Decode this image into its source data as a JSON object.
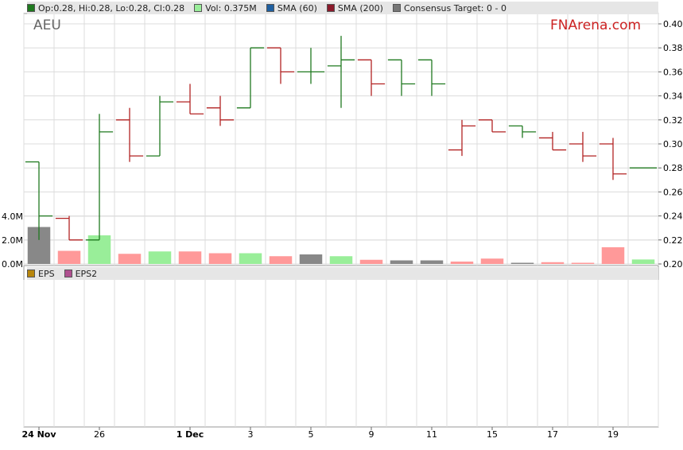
{
  "ticker": "AEU",
  "brand": "FNArena.com",
  "legend": [
    {
      "label": "Op:0.28, Hi:0.28, Lo:0.28, Cl:0.28",
      "color": "#1f7a1f"
    },
    {
      "label": "Vol: 0.375M",
      "color": "#99ee99"
    },
    {
      "label": "SMA (60)",
      "color": "#1f5fa0"
    },
    {
      "label": "SMA (200)",
      "color": "#8b1a2b"
    },
    {
      "label": "Consensus Target: 0 - 0",
      "color": "#777777"
    }
  ],
  "legend2": [
    {
      "label": "EPS",
      "color": "#b8860b"
    },
    {
      "label": "EPS2",
      "color": "#b05090"
    }
  ],
  "colors": {
    "up": "#1f7a1f",
    "down": "#b22222",
    "vol_up": "#99ee99",
    "vol_down": "#ff9999",
    "vol_neutral": "#888888"
  },
  "chart_data": {
    "type": "ohlc",
    "price_ylim": [
      0.2,
      0.4
    ],
    "price_ticks": [
      "0.20",
      "0.22",
      "0.24",
      "0.26",
      "0.28",
      "0.30",
      "0.32",
      "0.34",
      "0.36",
      "0.38",
      "0.40"
    ],
    "volume_ticks": [
      "0.0M",
      "2.0M",
      "4.0M"
    ],
    "volume_ylim": [
      0,
      4000000
    ],
    "x_labels": [
      {
        "index": 0,
        "text": "24 Nov",
        "bold": true
      },
      {
        "index": 2,
        "text": "26",
        "bold": false
      },
      {
        "index": 5,
        "text": "1 Dec",
        "bold": true
      },
      {
        "index": 7,
        "text": "3",
        "bold": false
      },
      {
        "index": 9,
        "text": "5",
        "bold": false
      },
      {
        "index": 11,
        "text": "9",
        "bold": false
      },
      {
        "index": 13,
        "text": "11",
        "bold": false
      },
      {
        "index": 15,
        "text": "15",
        "bold": false
      },
      {
        "index": 17,
        "text": "17",
        "bold": false
      },
      {
        "index": 19,
        "text": "19",
        "bold": false
      }
    ],
    "bars": [
      {
        "o": 0.285,
        "h": 0.285,
        "l": 0.22,
        "c": 0.24,
        "dir": "up",
        "vol": 3100000,
        "vc": "neutral"
      },
      {
        "o": 0.238,
        "h": 0.24,
        "l": 0.22,
        "c": 0.22,
        "dir": "down",
        "vol": 1100000,
        "vc": "down"
      },
      {
        "o": 0.22,
        "h": 0.325,
        "l": 0.22,
        "c": 0.31,
        "dir": "up",
        "vol": 2400000,
        "vc": "up"
      },
      {
        "o": 0.32,
        "h": 0.33,
        "l": 0.285,
        "c": 0.29,
        "dir": "down",
        "vol": 850000,
        "vc": "down"
      },
      {
        "o": 0.29,
        "h": 0.34,
        "l": 0.29,
        "c": 0.335,
        "dir": "up",
        "vol": 1050000,
        "vc": "up"
      },
      {
        "o": 0.335,
        "h": 0.35,
        "l": 0.325,
        "c": 0.325,
        "dir": "down",
        "vol": 1050000,
        "vc": "down"
      },
      {
        "o": 0.33,
        "h": 0.34,
        "l": 0.315,
        "c": 0.32,
        "dir": "down",
        "vol": 900000,
        "vc": "down"
      },
      {
        "o": 0.33,
        "h": 0.38,
        "l": 0.33,
        "c": 0.38,
        "dir": "up",
        "vol": 900000,
        "vc": "up"
      },
      {
        "o": 0.38,
        "h": 0.38,
        "l": 0.35,
        "c": 0.36,
        "dir": "down",
        "vol": 650000,
        "vc": "down"
      },
      {
        "o": 0.36,
        "h": 0.38,
        "l": 0.35,
        "c": 0.36,
        "dir": "up",
        "vol": 800000,
        "vc": "neutral"
      },
      {
        "o": 0.365,
        "h": 0.39,
        "l": 0.33,
        "c": 0.37,
        "dir": "up",
        "vol": 650000,
        "vc": "up"
      },
      {
        "o": 0.37,
        "h": 0.37,
        "l": 0.34,
        "c": 0.35,
        "dir": "down",
        "vol": 350000,
        "vc": "down"
      },
      {
        "o": 0.37,
        "h": 0.37,
        "l": 0.34,
        "c": 0.35,
        "dir": "up",
        "vol": 300000,
        "vc": "neutral"
      },
      {
        "o": 0.37,
        "h": 0.37,
        "l": 0.34,
        "c": 0.35,
        "dir": "up",
        "vol": 300000,
        "vc": "neutral"
      },
      {
        "o": 0.295,
        "h": 0.32,
        "l": 0.29,
        "c": 0.315,
        "dir": "down",
        "vol": 200000,
        "vc": "down"
      },
      {
        "o": 0.32,
        "h": 0.32,
        "l": 0.31,
        "c": 0.31,
        "dir": "down",
        "vol": 450000,
        "vc": "down"
      },
      {
        "o": 0.315,
        "h": 0.315,
        "l": 0.305,
        "c": 0.31,
        "dir": "up",
        "vol": 100000,
        "vc": "neutral"
      },
      {
        "o": 0.305,
        "h": 0.31,
        "l": 0.295,
        "c": 0.295,
        "dir": "down",
        "vol": 150000,
        "vc": "down"
      },
      {
        "o": 0.3,
        "h": 0.31,
        "l": 0.285,
        "c": 0.29,
        "dir": "down",
        "vol": 100000,
        "vc": "down"
      },
      {
        "o": 0.3,
        "h": 0.305,
        "l": 0.27,
        "c": 0.275,
        "dir": "down",
        "vol": 1400000,
        "vc": "down"
      },
      {
        "o": 0.28,
        "h": 0.28,
        "l": 0.28,
        "c": 0.28,
        "dir": "up",
        "vol": 375000,
        "vc": "up"
      }
    ]
  }
}
